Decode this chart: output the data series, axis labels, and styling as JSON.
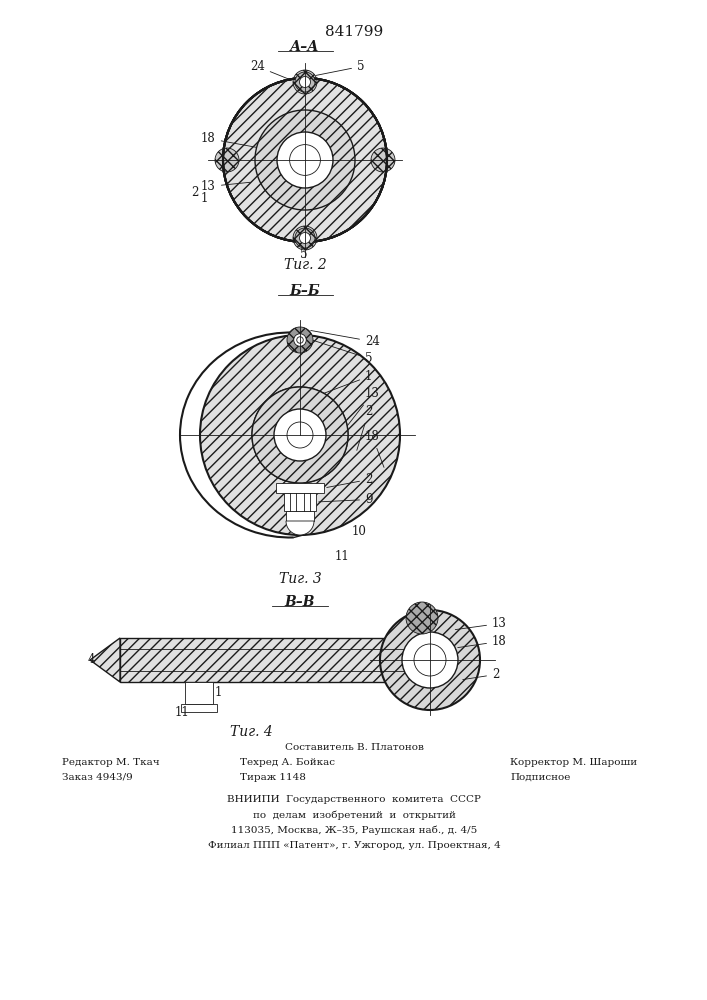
{
  "patent_number": "841799",
  "fig2_caption": "Τиг. 2",
  "fig3_caption": "Τиг. 3",
  "fig4_caption": "Τиг. 4",
  "footer_line1_left": "Редактор М. Ткач",
  "footer_line2_left": "Заказ 4943/9",
  "footer_line1_center": "Составитель В. Платонов",
  "footer_line2_center": "Техред А. Бойкас",
  "footer_line3_center": "Тираж 1148",
  "footer_line2_right": "Корректор М. Шароши",
  "footer_line3_right": "Подписное",
  "footer_vniiipi": "ВНИИПИ  Государственного  комитета  СССР",
  "footer_vniiipi2": "по  делам  изобретений  и  открытий",
  "footer_address1": "113035, Москва, Ж–35, Раушская наб., д. 4/5",
  "footer_address2": "Филиал ППП «Патент», г. Ужгород, ул. Проектная, 4",
  "bg_color": "#ffffff",
  "line_color": "#1a1a1a"
}
